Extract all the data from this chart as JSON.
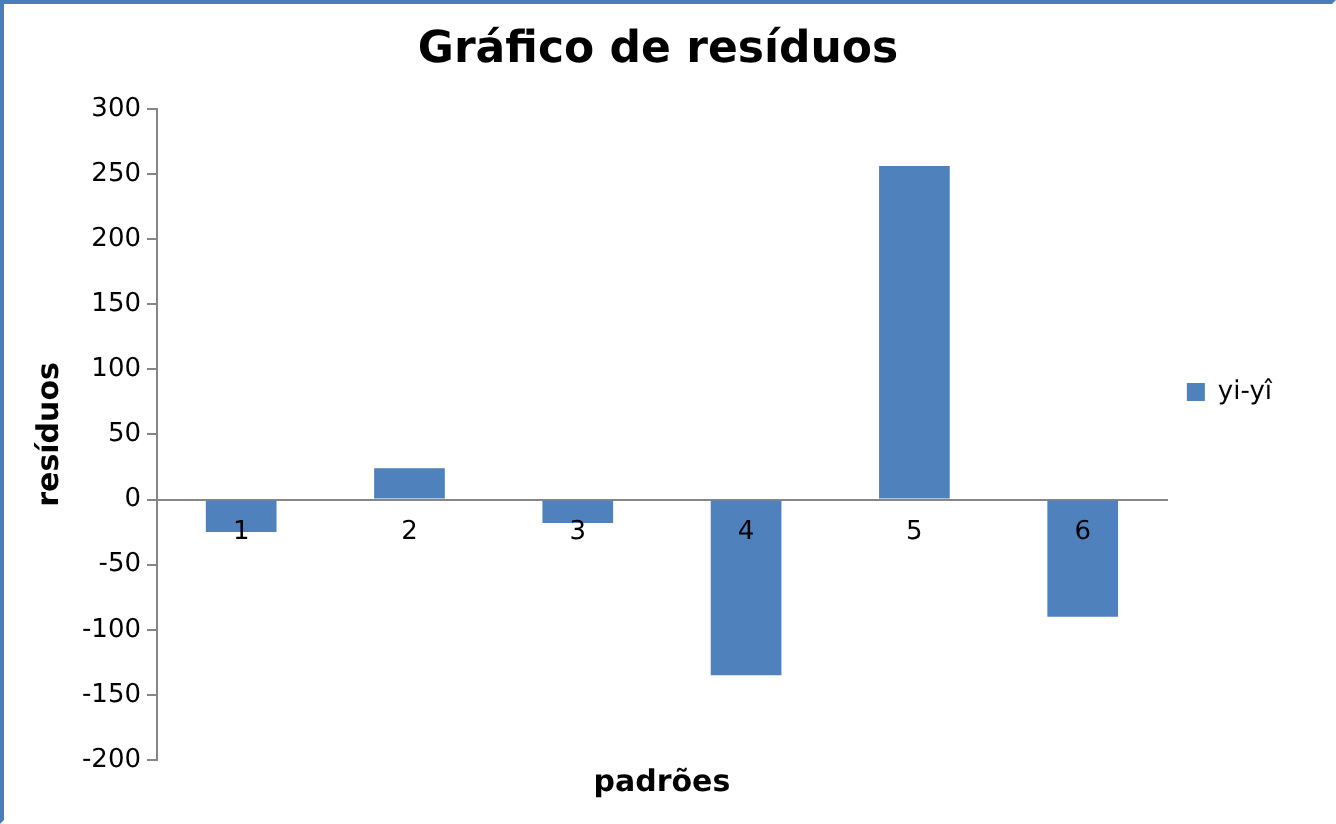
{
  "chart_data": {
    "type": "bar",
    "title": "Gráfico de resíduos",
    "xlabel": "padrões",
    "ylabel": "resíduos",
    "categories": [
      "1",
      "2",
      "3",
      "4",
      "5",
      "6"
    ],
    "series": [
      {
        "name": "yi-yî",
        "color": "#4f81bd",
        "values": [
          -25,
          24,
          -18,
          -135,
          256,
          -90
        ]
      }
    ],
    "ylim": [
      -200,
      300
    ],
    "yticks": [
      -200,
      -150,
      -100,
      -50,
      0,
      50,
      100,
      150,
      200,
      250,
      300
    ],
    "grid": false,
    "legend": "right"
  }
}
